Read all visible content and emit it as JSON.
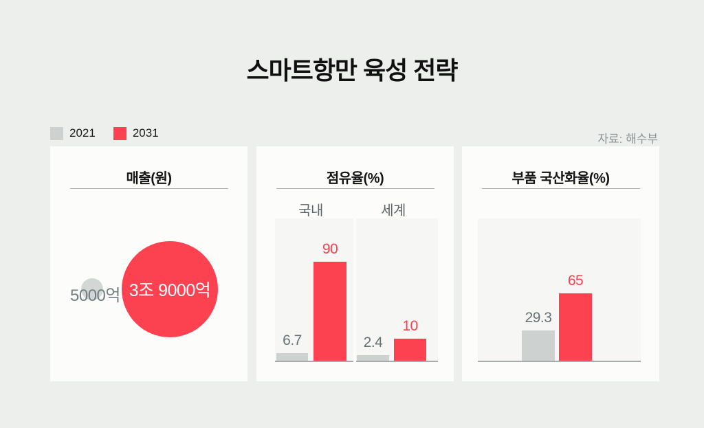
{
  "page": {
    "title": "스마트항만 육성 전략",
    "source": "자료: 해수부"
  },
  "legend": {
    "items": [
      {
        "label": "2021",
        "color": "#CDD2D1"
      },
      {
        "label": "2031",
        "color": "#FC4150"
      }
    ]
  },
  "colors": {
    "background": "#EDEFED",
    "panel": "#FCFDFB",
    "subpanel": "#F6F7F5",
    "red": "#FC4150",
    "gray": "#CDD2D1",
    "baseline": "#A6ACAB",
    "gray_text": "#687274"
  },
  "chart_data": [
    {
      "type": "bubble",
      "title": "매출(원)",
      "series": [
        {
          "name": "2021",
          "label": "5000억",
          "value_eok": 5000
        },
        {
          "name": "2031",
          "label": "3조 9000억",
          "value_eok": 39000
        }
      ]
    },
    {
      "type": "bar",
      "title": "점유율(%)",
      "categories": [
        "국내",
        "세계"
      ],
      "series": [
        {
          "name": "2021",
          "values": [
            6.7,
            2.4
          ]
        },
        {
          "name": "2031",
          "values": [
            90,
            10
          ]
        }
      ],
      "ylim": [
        0,
        100
      ],
      "legend_position": "top-left",
      "grid": false
    },
    {
      "type": "bar",
      "title": "부품 국산화율(%)",
      "categories": [
        ""
      ],
      "series": [
        {
          "name": "2021",
          "values": [
            29.3
          ]
        },
        {
          "name": "2031",
          "values": [
            65
          ]
        }
      ],
      "ylim": [
        0,
        100
      ],
      "grid": false
    }
  ]
}
